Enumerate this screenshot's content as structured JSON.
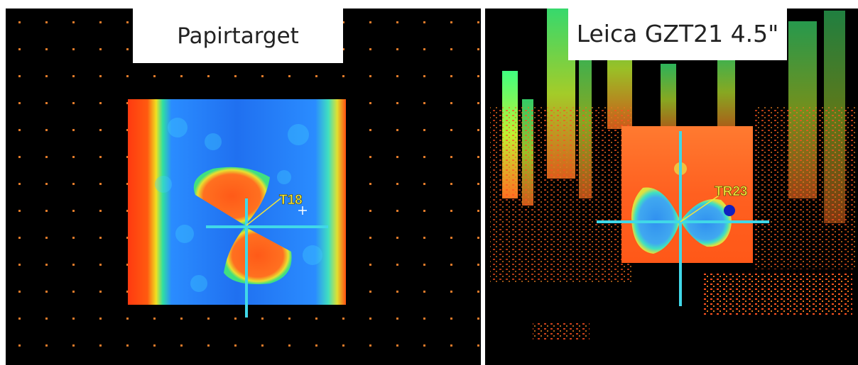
{
  "panels": [
    {
      "title": "Papirtarget",
      "target_label": "T18"
    },
    {
      "title": "Leica GZT21 4.5\"",
      "target_label": "TR23"
    }
  ]
}
